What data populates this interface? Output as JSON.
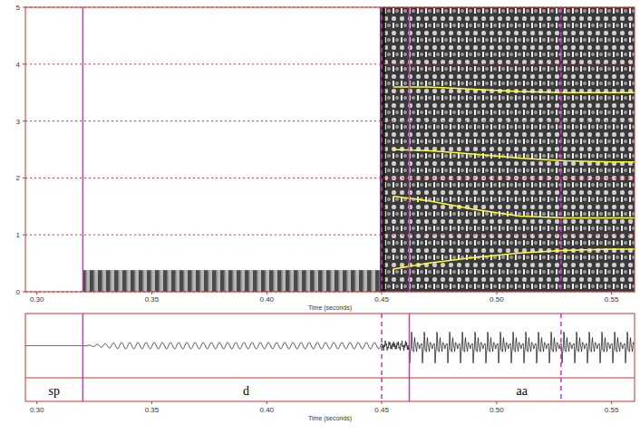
{
  "chart_data": [
    {
      "type": "spectrogram",
      "x_label": "Time (seconds)",
      "xlim": [
        0.295,
        0.56
      ],
      "xticks": [
        {
          "value": 0.3,
          "label": "0.30"
        },
        {
          "value": 0.35,
          "label": "0.35"
        },
        {
          "value": 0.4,
          "label": "0.40"
        },
        {
          "value": 0.45,
          "label": "0.45"
        },
        {
          "value": 0.5,
          "label": "0.50"
        },
        {
          "value": 0.55,
          "label": "0.55"
        }
      ],
      "ylim": [
        0,
        5
      ],
      "yticks": [
        0,
        1,
        2,
        3,
        4,
        5
      ],
      "grid": true,
      "x": [
        0.455,
        0.47,
        0.49,
        0.51,
        0.53,
        0.55,
        0.56
      ],
      "series": [
        {
          "color": "#ffff33",
          "values": [
            0.4,
            0.5,
            0.6,
            0.68,
            0.73,
            0.75,
            0.75
          ]
        },
        {
          "color": "#ffff33",
          "values": [
            1.68,
            1.6,
            1.45,
            1.33,
            1.3,
            1.3,
            1.3
          ]
        },
        {
          "color": "#ffff33",
          "values": [
            2.5,
            2.48,
            2.42,
            2.35,
            2.3,
            2.28,
            2.28
          ]
        },
        {
          "color": "#ffff33",
          "values": [
            3.6,
            3.6,
            3.56,
            3.52,
            3.5,
            3.5,
            3.5
          ]
        }
      ]
    },
    {
      "type": "waveform",
      "x_label": "Time (seconds)",
      "xlim": [
        0.295,
        0.56
      ],
      "xticks": [
        {
          "value": 0.3,
          "label": "0.30"
        },
        {
          "value": 0.35,
          "label": "0.35"
        },
        {
          "value": 0.4,
          "label": "0.40"
        },
        {
          "value": 0.45,
          "label": "0.45"
        },
        {
          "value": 0.5,
          "label": "0.50"
        },
        {
          "value": 0.55,
          "label": "0.55"
        }
      ],
      "segments": [
        {
          "label": "sp",
          "start": 0.295,
          "end": 0.32
        },
        {
          "label": "d",
          "start": 0.32,
          "end": 0.462
        },
        {
          "label": "aa",
          "start": 0.462,
          "end": 0.56
        }
      ],
      "boundaries": [
        {
          "time": 0.32,
          "line_style": "solid"
        },
        {
          "time": 0.45,
          "line_style": "dashed"
        },
        {
          "time": 0.462,
          "line_style": "solid"
        },
        {
          "time": 0.528,
          "line_style": "dashed"
        }
      ],
      "color": "#cc33cc"
    }
  ]
}
